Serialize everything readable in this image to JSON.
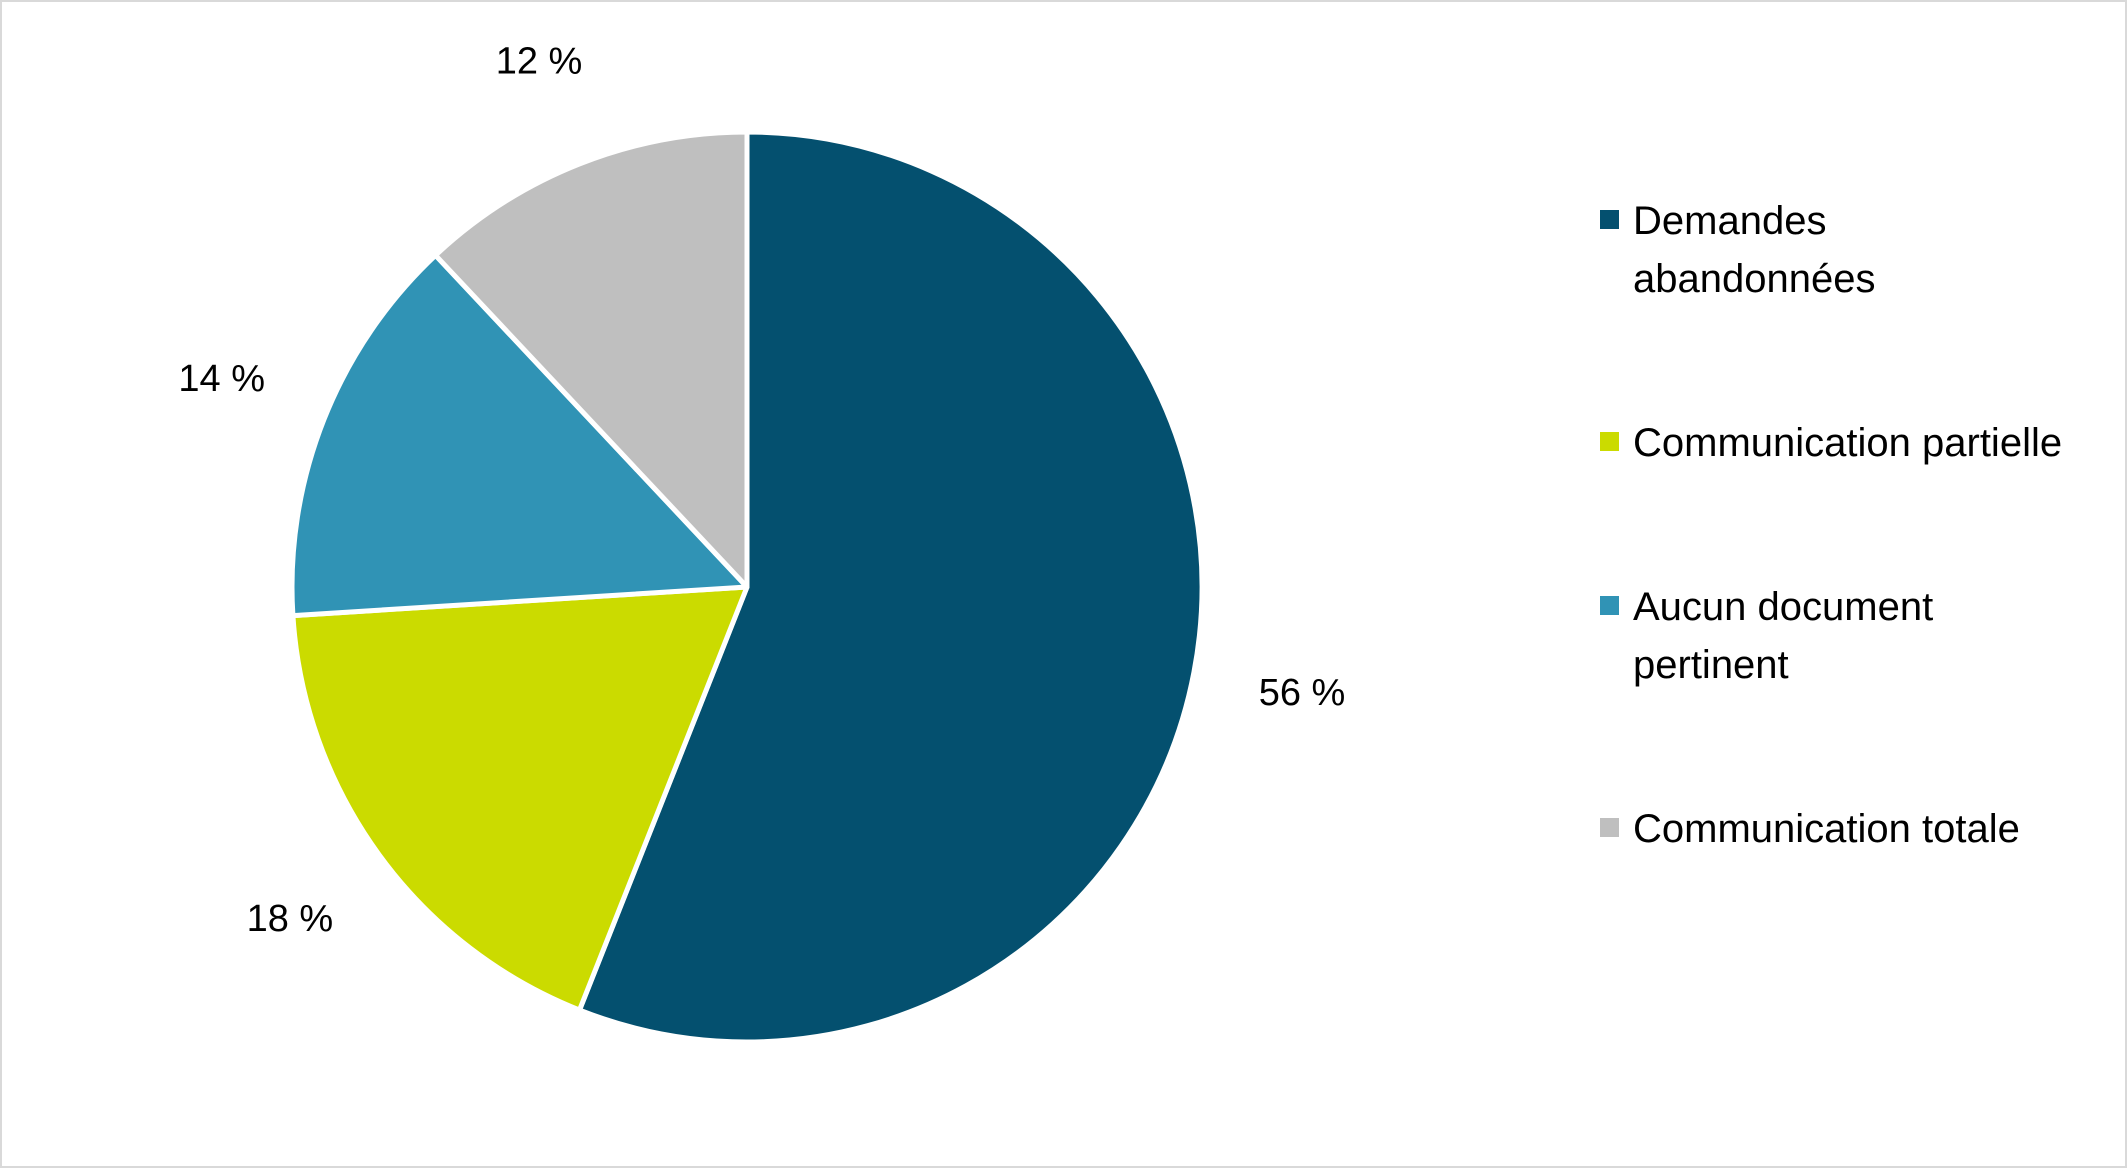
{
  "chart_data": {
    "type": "pie",
    "start_angle_deg": 0,
    "direction": "clockwise",
    "slices": [
      {
        "label": "Demandes abandonnées",
        "value": 56,
        "display": "56 %",
        "color": "#04506F"
      },
      {
        "label": "Communication partielle",
        "value": 18,
        "display": "18 %",
        "color": "#CBDB00"
      },
      {
        "label": "Aucun document pertinent",
        "value": 14,
        "display": "14 %",
        "color": "#3093B5"
      },
      {
        "label": "Communication totale",
        "value": 12,
        "display": "12 %",
        "color": "#BFBFBF"
      }
    ],
    "legend": {
      "position": "right"
    }
  }
}
